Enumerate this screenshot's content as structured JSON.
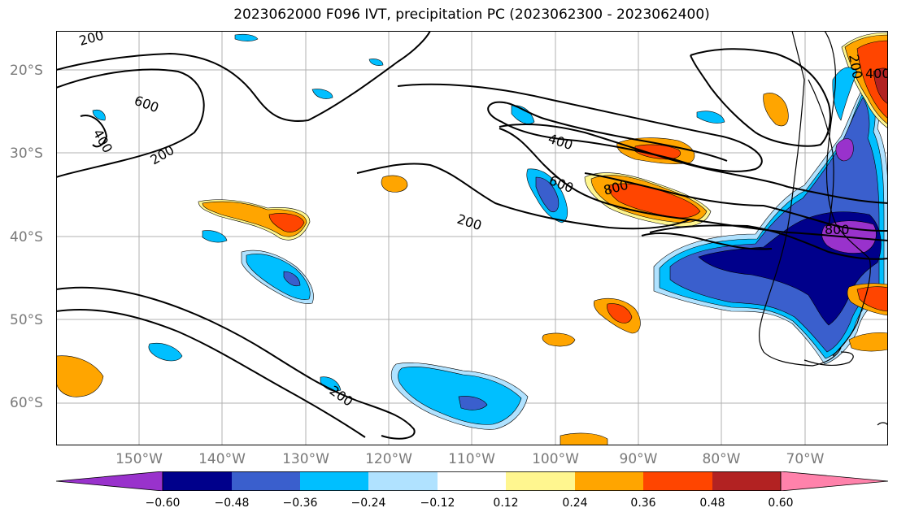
{
  "title": "2023062000 F096 IVT, precipitation PC (2023062300 - 2023062400)",
  "lat_labels": [
    "20°S",
    "30°S",
    "40°S",
    "50°S",
    "60°S"
  ],
  "lon_labels": [
    "150°W",
    "140°W",
    "130°W",
    "120°W",
    "110°W",
    "100°W",
    "90°W",
    "80°W",
    "70°W"
  ],
  "contour_labels": [
    "200",
    "600",
    "400",
    "200",
    "400",
    "600",
    "800",
    "200",
    "200",
    "800",
    "200",
    "400"
  ],
  "colorbar": {
    "ticks": [
      "−0.60",
      "−0.48",
      "−0.36",
      "−0.24",
      "−0.12",
      "0.12",
      "0.24",
      "0.36",
      "0.48",
      "0.60"
    ],
    "colors": [
      "#9932cc",
      "#00008b",
      "#3a5fcd",
      "#00bfff",
      "#b0e2ff",
      "#ffffff",
      "#fff68f",
      "#ffa500",
      "#ff4500",
      "#b22222",
      "#ff82ab"
    ]
  },
  "palette": {
    "purple": "#9932cc",
    "navy": "#00008b",
    "blue": "#3a5fcd",
    "sky": "#00bfff",
    "light_sky": "#b0e2ff",
    "khaki": "#fff68f",
    "orange": "#ffa500",
    "orange_red": "#ff4500",
    "firebrick": "#b22222"
  }
}
